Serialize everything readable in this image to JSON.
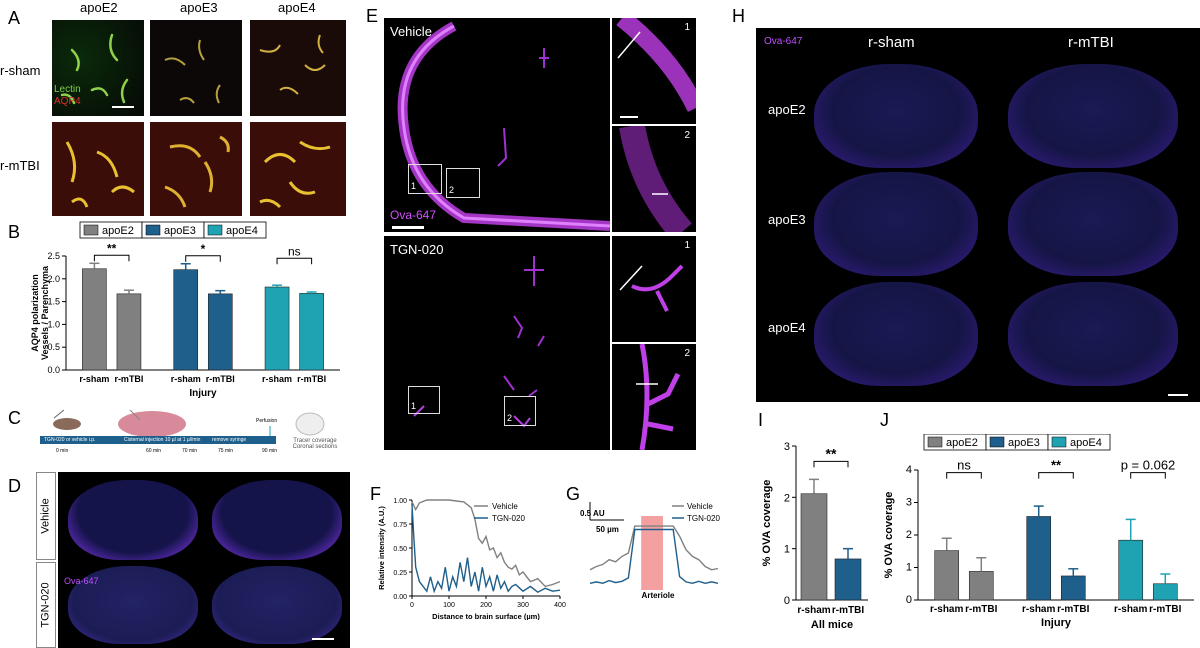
{
  "panels": {
    "A": {
      "label": "A",
      "columns": [
        "apoE2",
        "apoE3",
        "apoE4"
      ],
      "rows": [
        "r-sham",
        "r-mTBI"
      ],
      "stain_lectin": "Lectin",
      "stain_aqp4": "AQP4"
    },
    "B": {
      "label": "B"
    },
    "C": {
      "label": "C",
      "step1": "TGN-020 or vehicle i.p.",
      "step2": "Cisternal injection 10 µl at 1 µl/min",
      "step3": "remove syringe",
      "perfusion": "Perfusion",
      "result": "Tracer coverage Coronal sections",
      "t0": "0 min",
      "t60": "60 min",
      "t70": "70 min",
      "t75": "75 min",
      "t90": "90 min"
    },
    "D": {
      "label": "D",
      "rows": [
        "Vehicle",
        "TGN-020"
      ],
      "tracer": "Ova-647"
    },
    "E": {
      "label": "E",
      "vehicle": "Vehicle",
      "tgn": "TGN-020",
      "tracer": "Ova-647",
      "box1": "1",
      "box2": "2"
    },
    "F": {
      "label": "F"
    },
    "G": {
      "label": "G",
      "scale_au": "0.5 AU",
      "scale_um": "50 µm",
      "xlabel": "Arteriole"
    },
    "H": {
      "label": "H",
      "tracer": "Ova-647",
      "columns": [
        "r-sham",
        "r-mTBI"
      ],
      "rows": [
        "apoE2",
        "apoE3",
        "apoE4"
      ]
    },
    "I": {
      "label": "I"
    },
    "J": {
      "label": "J"
    }
  },
  "chart_data": [
    {
      "id": "B",
      "type": "bar",
      "legend": [
        "apoE2",
        "apoE3",
        "apoE4"
      ],
      "legend_placement": "top",
      "groups": [
        "apoE2",
        "apoE3",
        "apoE4"
      ],
      "categories": [
        "r-sham",
        "r-mTBI"
      ],
      "series": [
        {
          "name": "apoE2",
          "values": [
            2.22,
            1.67
          ],
          "errors": [
            0.12,
            0.08
          ],
          "color": "#808080"
        },
        {
          "name": "apoE3",
          "values": [
            2.2,
            1.67
          ],
          "errors": [
            0.13,
            0.07
          ],
          "color": "#1f5f8b"
        },
        {
          "name": "apoE4",
          "values": [
            1.82,
            1.68
          ],
          "errors": [
            0.04,
            0.03
          ],
          "color": "#1fa3b3"
        }
      ],
      "significance": [
        "**",
        "*",
        "ns"
      ],
      "ylabel": "AQP4 polarization Vessels / Parenchyma",
      "xlabel": "Injury",
      "ylim": [
        0,
        2.5
      ],
      "yticks": [
        "0.0",
        "0.5",
        "1.0",
        "1.5",
        "2.0",
        "2.5"
      ]
    },
    {
      "id": "F",
      "type": "line",
      "xlabel": "Distance to brain surface (µm)",
      "ylabel": "Relative intensity (A.U.)",
      "xlim": [
        0,
        400
      ],
      "ylim": [
        0,
        1.0
      ],
      "xticks": [
        "0",
        "100",
        "200",
        "300",
        "400"
      ],
      "yticks": [
        "0.00",
        "0.25",
        "0.50",
        "0.75",
        "1.00"
      ],
      "series": [
        {
          "name": "Vehicle",
          "color": "#808080",
          "x": [
            0,
            10,
            20,
            40,
            60,
            80,
            100,
            120,
            140,
            160,
            170,
            180,
            190,
            200,
            210,
            220,
            230,
            240,
            250,
            260,
            270,
            280,
            290,
            300,
            310,
            320,
            340,
            360,
            380,
            400
          ],
          "y": [
            0.98,
            0.9,
            0.97,
            1.0,
            1.0,
            1.0,
            1.0,
            0.99,
            0.98,
            0.92,
            0.8,
            0.6,
            0.55,
            0.62,
            0.48,
            0.5,
            0.4,
            0.45,
            0.35,
            0.3,
            0.28,
            0.32,
            0.22,
            0.25,
            0.2,
            0.15,
            0.18,
            0.1,
            0.12,
            0.15
          ]
        },
        {
          "name": "TGN-020",
          "color": "#1f5f8b",
          "x": [
            0,
            5,
            10,
            20,
            30,
            40,
            50,
            60,
            70,
            80,
            90,
            100,
            110,
            120,
            130,
            140,
            150,
            160,
            170,
            180,
            190,
            200,
            210,
            220,
            230,
            240,
            250,
            260,
            270,
            280,
            300,
            320,
            340,
            360,
            380,
            400
          ],
          "y": [
            0.95,
            0.6,
            0.3,
            0.15,
            0.1,
            0.05,
            0.2,
            0.05,
            0.15,
            0.08,
            0.3,
            0.05,
            0.2,
            0.1,
            0.35,
            0.15,
            0.4,
            0.1,
            0.25,
            0.05,
            0.3,
            0.1,
            0.2,
            0.05,
            0.22,
            0.08,
            0.15,
            0.05,
            0.1,
            0.12,
            0.05,
            0.1,
            0.04,
            0.08,
            0.05,
            0.06
          ]
        }
      ]
    },
    {
      "id": "G",
      "type": "line",
      "legend": [
        "Vehicle",
        "TGN-020"
      ],
      "series": [
        {
          "name": "Vehicle",
          "color": "#808080",
          "x": [
            0,
            5,
            10,
            15,
            20,
            25,
            30,
            35,
            40,
            45,
            50,
            55,
            60,
            65,
            70,
            75,
            80,
            85,
            90,
            95,
            100
          ],
          "y": [
            0.3,
            0.35,
            0.38,
            0.45,
            0.42,
            0.5,
            0.55,
            0.95,
            0.95,
            0.95,
            0.95,
            0.95,
            0.95,
            0.95,
            0.8,
            0.6,
            0.5,
            0.45,
            0.35,
            0.3,
            0.32
          ]
        },
        {
          "name": "TGN-020",
          "color": "#1f5f8b",
          "x": [
            0,
            5,
            10,
            15,
            20,
            25,
            30,
            35,
            40,
            45,
            50,
            55,
            60,
            65,
            70,
            75,
            80,
            85,
            90,
            95,
            100
          ],
          "y": [
            0.1,
            0.12,
            0.1,
            0.14,
            0.11,
            0.13,
            0.18,
            0.9,
            0.9,
            0.9,
            0.9,
            0.9,
            0.9,
            0.9,
            0.2,
            0.12,
            0.1,
            0.13,
            0.1,
            0.12,
            0.1
          ]
        }
      ],
      "highlight_range": [
        40,
        57
      ],
      "highlight_color": "#f4a0a0"
    },
    {
      "id": "I",
      "type": "bar",
      "categories": [
        "r-sham",
        "r-mTBI"
      ],
      "values": [
        2.07,
        0.8
      ],
      "errors": [
        0.28,
        0.2
      ],
      "colors": [
        "#808080",
        "#1f5f8b"
      ],
      "significance": "**",
      "ylabel": "% OVA coverage",
      "xlabel": "All mice",
      "ylim": [
        0,
        3
      ],
      "yticks": [
        "0",
        "1",
        "2",
        "3"
      ]
    },
    {
      "id": "J",
      "type": "bar",
      "legend": [
        "apoE2",
        "apoE3",
        "apoE4"
      ],
      "legend_placement": "top",
      "categories": [
        "r-sham",
        "r-mTBI"
      ],
      "series": [
        {
          "name": "apoE2",
          "values": [
            1.52,
            0.88
          ],
          "errors": [
            0.38,
            0.42
          ],
          "color": "#808080"
        },
        {
          "name": "apoE3",
          "values": [
            2.57,
            0.74
          ],
          "errors": [
            0.32,
            0.22
          ],
          "color": "#1f5f8b"
        },
        {
          "name": "apoE4",
          "values": [
            1.84,
            0.5
          ],
          "errors": [
            0.64,
            0.3
          ],
          "color": "#1fa3b3"
        }
      ],
      "significance": [
        "ns",
        "**",
        "p = 0.062"
      ],
      "ylabel": "% OVA coverage",
      "xlabel": "Injury",
      "ylim": [
        0,
        4
      ],
      "yticks": [
        "0",
        "1",
        "2",
        "3",
        "4"
      ]
    }
  ]
}
